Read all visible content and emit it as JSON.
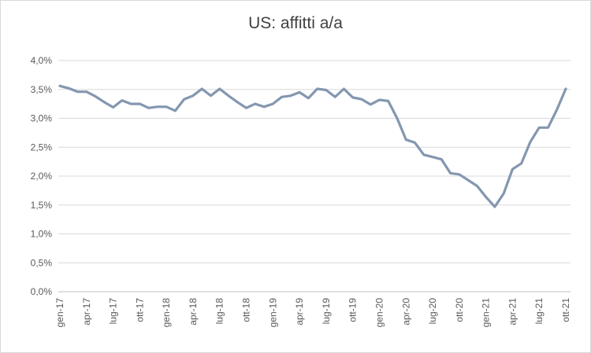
{
  "chart_data": {
    "type": "line",
    "title": "US: affitti a/a",
    "xlabel": "",
    "ylabel": "",
    "ylim": [
      0,
      4
    ],
    "y_ticks": [
      "0,0%",
      "0,5%",
      "1,0%",
      "1,5%",
      "2,0%",
      "2,5%",
      "3,0%",
      "3,5%",
      "4,0%"
    ],
    "x_tick_labels": [
      "gen-17",
      "apr-17",
      "lug-17",
      "ott-17",
      "gen-18",
      "apr-18",
      "lug-18",
      "ott-18",
      "gen-19",
      "apr-19",
      "lug-19",
      "ott-19",
      "gen-20",
      "apr-20",
      "lug-20",
      "ott-20",
      "gen-21",
      "apr-21",
      "lug-21",
      "ott-21"
    ],
    "grid": true,
    "legend": "none",
    "color": "#8497b0",
    "x": [
      "gen-17",
      "feb-17",
      "mar-17",
      "apr-17",
      "mag-17",
      "giu-17",
      "lug-17",
      "ago-17",
      "set-17",
      "ott-17",
      "nov-17",
      "dic-17",
      "gen-18",
      "feb-18",
      "mar-18",
      "apr-18",
      "mag-18",
      "giu-18",
      "lug-18",
      "ago-18",
      "set-18",
      "ott-18",
      "nov-18",
      "dic-18",
      "gen-19",
      "feb-19",
      "mar-19",
      "apr-19",
      "mag-19",
      "giu-19",
      "lug-19",
      "ago-19",
      "set-19",
      "ott-19",
      "nov-19",
      "dic-19",
      "gen-20",
      "feb-20",
      "mar-20",
      "apr-20",
      "mag-20",
      "giu-20",
      "lug-20",
      "ago-20",
      "set-20",
      "ott-20",
      "nov-20",
      "dic-20",
      "gen-21",
      "feb-21",
      "mar-21",
      "apr-21",
      "mag-21",
      "giu-21",
      "lug-21",
      "ago-21",
      "set-21",
      "ott-21"
    ],
    "values": [
      3.56,
      3.52,
      3.46,
      3.46,
      3.38,
      3.28,
      3.19,
      3.31,
      3.25,
      3.25,
      3.18,
      3.2,
      3.2,
      3.13,
      3.33,
      3.39,
      3.51,
      3.39,
      3.51,
      3.39,
      3.28,
      3.18,
      3.25,
      3.2,
      3.25,
      3.37,
      3.39,
      3.45,
      3.35,
      3.51,
      3.49,
      3.37,
      3.51,
      3.36,
      3.33,
      3.24,
      3.32,
      3.3,
      3.0,
      2.63,
      2.58,
      2.37,
      2.33,
      2.29,
      2.05,
      2.03,
      1.93,
      1.83,
      1.64,
      1.47,
      1.7,
      2.12,
      2.22,
      2.59,
      2.84,
      2.84,
      3.15,
      3.51
    ]
  }
}
